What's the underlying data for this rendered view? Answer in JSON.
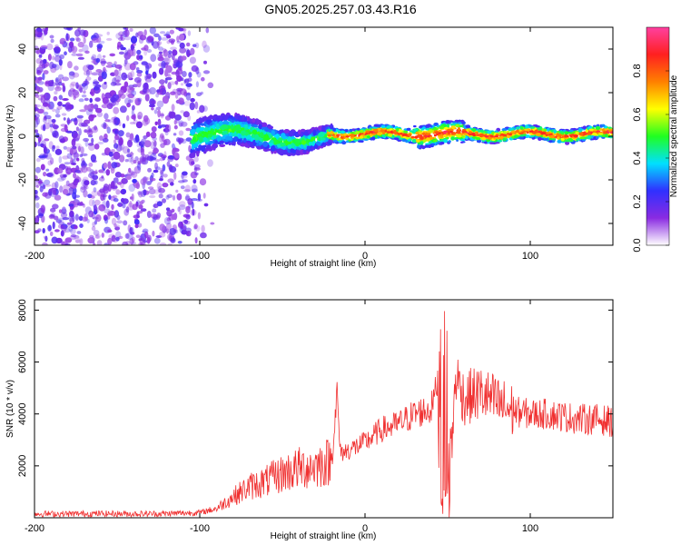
{
  "figure_title": "GN05.2025.257.03.43.R16",
  "colors": {
    "snr_line": "#f03030",
    "axis": "#000000",
    "colormap": [
      "#ffffff",
      "#8a2be2",
      "#3030ff",
      "#00e0ff",
      "#20ff20",
      "#ffff00",
      "#ff8000",
      "#ff2020",
      "#ff40a0"
    ]
  },
  "chart_data": [
    {
      "type": "heatmap",
      "title": "",
      "xlabel": "Height of straight line (km)",
      "ylabel": "Frequency (Hz)",
      "xlim": [
        -200,
        150
      ],
      "ylim": [
        -50,
        50
      ],
      "xticks": [
        -200,
        -100,
        0,
        100
      ],
      "yticks": [
        -40,
        -20,
        0,
        20,
        40
      ],
      "colorbar": {
        "label": "Normalized spectral amplitude",
        "range": [
          0,
          1
        ],
        "ticks": [
          "0.0",
          "0.2",
          "0.4",
          "0.6",
          "0.8"
        ]
      },
      "regions": [
        {
          "x_range": [
            -200,
            -95
          ],
          "freq_range": [
            -50,
            50
          ],
          "amplitude": "0.05-0.2",
          "description": "broadband noise"
        },
        {
          "x_range": [
            -100,
            -20
          ],
          "center_freq": 0,
          "halfwidth_hz": 8,
          "amplitude": "0.3-0.5"
        },
        {
          "x_range": [
            -20,
            150
          ],
          "center_freq": 1,
          "halfwidth_hz": 3,
          "amplitude": "0.6-1.0"
        }
      ]
    },
    {
      "type": "line",
      "title": "",
      "xlabel": "Height of straight line (km)",
      "ylabel": "SNR (10 * v/v)",
      "xlim": [
        -200,
        150
      ],
      "ylim": [
        0,
        8400
      ],
      "xticks": [
        -200,
        -100,
        0,
        100
      ],
      "yticks": [
        2000,
        4000,
        6000,
        8000
      ],
      "series": [
        {
          "name": "SNR",
          "x": [
            -200,
            -180,
            -160,
            -140,
            -120,
            -100,
            -90,
            -80,
            -70,
            -60,
            -50,
            -40,
            -30,
            -20,
            -17,
            -15,
            -10,
            0,
            10,
            20,
            30,
            40,
            45,
            48,
            50,
            55,
            60,
            70,
            80,
            90,
            100,
            110,
            120,
            130,
            140,
            150
          ],
          "values": [
            150,
            150,
            160,
            150,
            160,
            200,
            350,
            800,
            1200,
            1400,
            1700,
            1900,
            2000,
            2200,
            4800,
            2500,
            2600,
            2900,
            3400,
            3600,
            4000,
            4200,
            5500,
            8200,
            200,
            5500,
            4600,
            4800,
            4400,
            4100,
            4000,
            4000,
            3900,
            3800,
            3800,
            3700
          ]
        }
      ]
    }
  ]
}
